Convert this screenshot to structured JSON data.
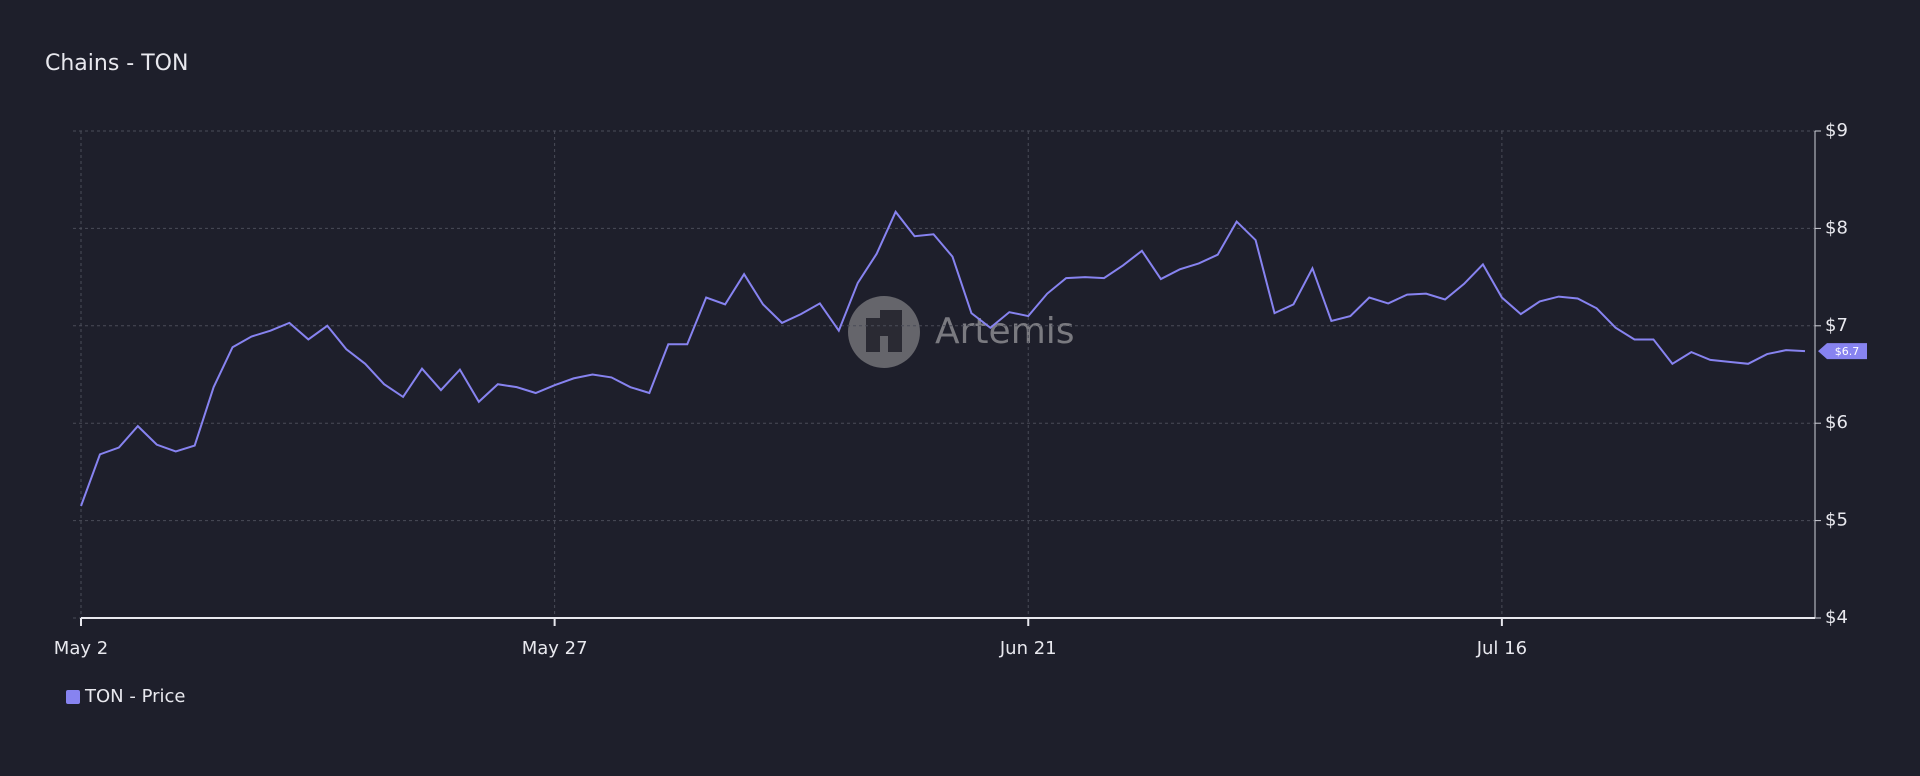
{
  "chart_data": {
    "type": "line",
    "title": "Chains - TON",
    "watermark": "Artemis",
    "categories": [
      "May 2",
      null,
      null,
      null,
      null,
      null,
      null,
      null,
      null,
      null,
      null,
      null,
      null,
      null,
      null,
      null,
      null,
      null,
      null,
      null,
      null,
      null,
      null,
      null,
      null,
      "May 27",
      null,
      null,
      null,
      null,
      null,
      null,
      null,
      null,
      null,
      null,
      null,
      null,
      null,
      null,
      null,
      null,
      null,
      null,
      null,
      null,
      null,
      null,
      null,
      null,
      "Jun 21",
      null,
      null,
      null,
      null,
      null,
      null,
      null,
      null,
      null,
      null,
      null,
      null,
      null,
      null,
      null,
      null,
      null,
      null,
      null,
      null,
      null,
      null,
      null,
      null,
      "Jul 16",
      null,
      null,
      null,
      null,
      null,
      null,
      null,
      null,
      null,
      null,
      null,
      null,
      null,
      null,
      null,
      null
    ],
    "series": [
      {
        "name": "TON - Price",
        "color": "#8783f0",
        "values": [
          5.15,
          5.68,
          5.75,
          5.97,
          5.78,
          5.71,
          5.77,
          6.37,
          6.78,
          6.89,
          6.95,
          7.03,
          6.86,
          7.0,
          6.76,
          6.61,
          6.4,
          6.27,
          6.56,
          6.34,
          6.55,
          6.22,
          6.4,
          6.37,
          6.31,
          6.39,
          6.46,
          6.5,
          6.47,
          6.37,
          6.31,
          6.81,
          6.81,
          7.29,
          7.22,
          7.53,
          7.22,
          7.03,
          7.12,
          7.23,
          6.95,
          7.44,
          7.74,
          8.17,
          7.92,
          7.94,
          7.71,
          7.13,
          6.98,
          7.14,
          7.1,
          7.33,
          7.49,
          7.5,
          7.49,
          7.62,
          7.77,
          7.48,
          7.58,
          7.64,
          7.73,
          8.07,
          7.88,
          7.13,
          7.22,
          7.59,
          7.05,
          7.1,
          7.29,
          7.23,
          7.32,
          7.33,
          7.27,
          7.43,
          7.63,
          7.29,
          7.12,
          7.25,
          7.3,
          7.28,
          7.18,
          6.98,
          6.86,
          6.86,
          6.61,
          6.73,
          6.65,
          6.63,
          6.61,
          6.71,
          6.75,
          6.74
        ],
        "value_labels": [
          null,
          null,
          null,
          null,
          null,
          null,
          null,
          null,
          null,
          null,
          null,
          null,
          null,
          null,
          null,
          null,
          null,
          null,
          null,
          null,
          null,
          null,
          null,
          null,
          null,
          null,
          null,
          null,
          null,
          null,
          null,
          null,
          null,
          null,
          null,
          null,
          null,
          null,
          null,
          null,
          null,
          null,
          null,
          null,
          null,
          null,
          null,
          null,
          null,
          null,
          null,
          null,
          null,
          null,
          null,
          null,
          null,
          null,
          null,
          null,
          null,
          null,
          null,
          null,
          null,
          null,
          null,
          null,
          null,
          null,
          null,
          null,
          null,
          null,
          null,
          null,
          null,
          null,
          null,
          null,
          null,
          null,
          null,
          null,
          null,
          null,
          null,
          null,
          null,
          null,
          null,
          "$6.7"
        ]
      }
    ],
    "ylim": [
      4,
      9
    ],
    "yticks": [
      {
        "value": 4,
        "label": "$4"
      },
      {
        "value": 5,
        "label": "$5"
      },
      {
        "value": 6,
        "label": "$6"
      },
      {
        "value": 7,
        "label": "$7"
      },
      {
        "value": 8,
        "label": "$8"
      },
      {
        "value": 9,
        "label": "$9"
      }
    ],
    "grid": true
  }
}
